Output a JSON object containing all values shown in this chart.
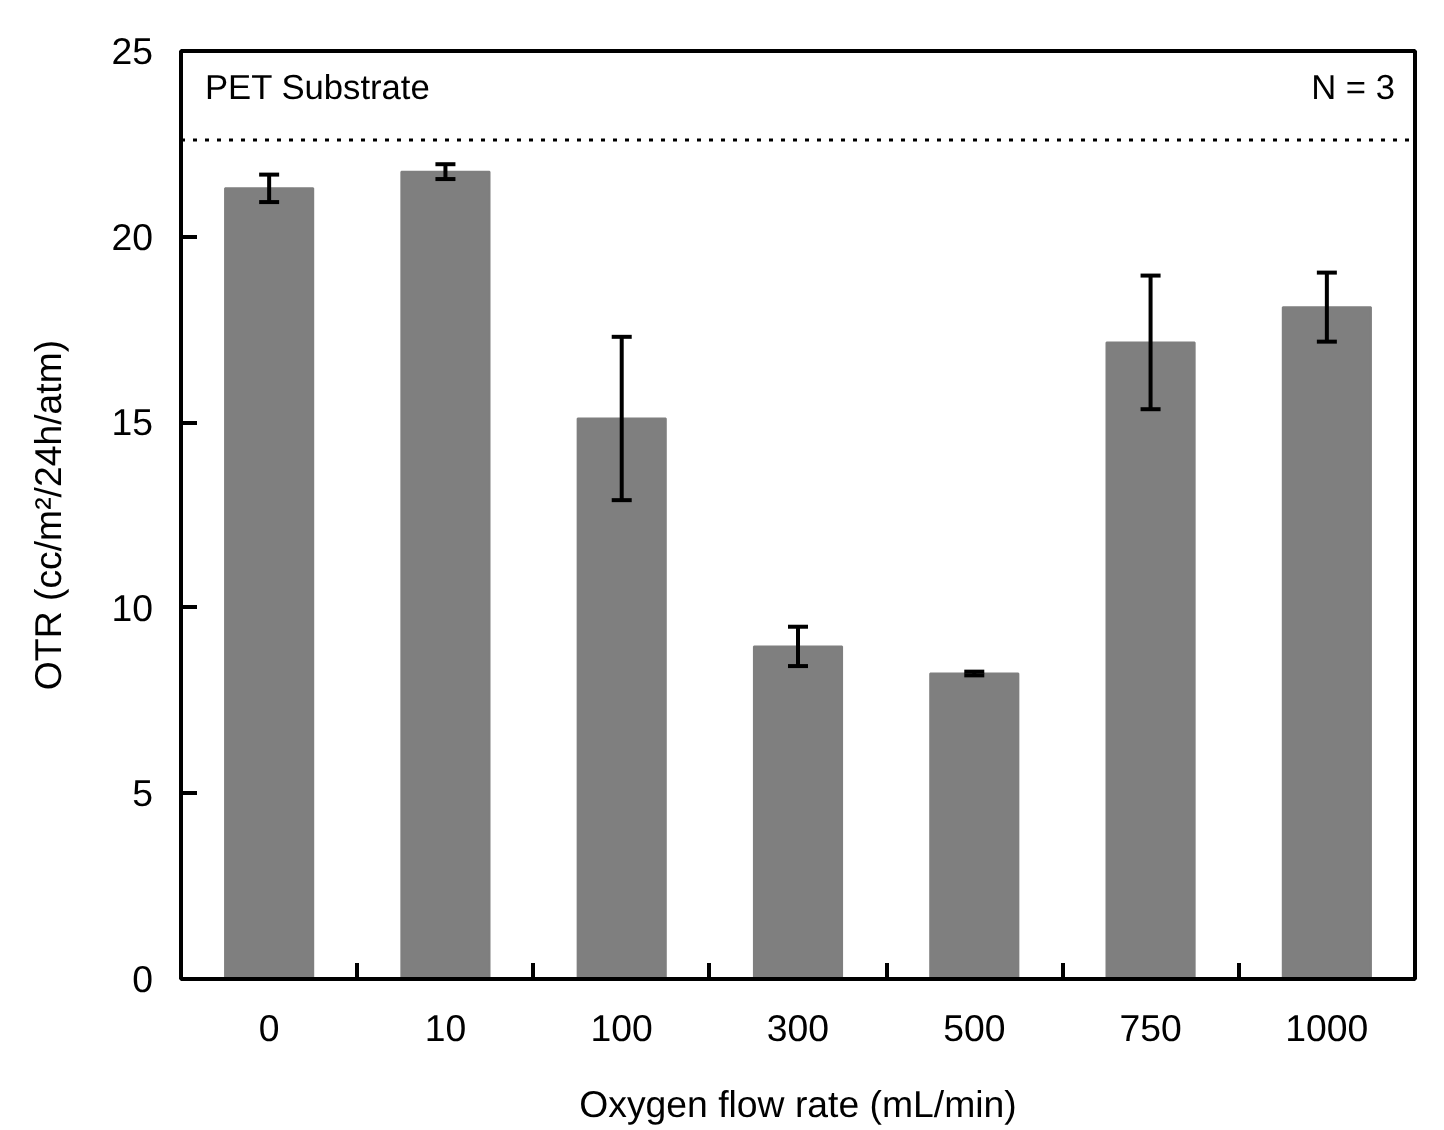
{
  "chart_data": {
    "type": "bar",
    "xlabel": "Oxygen flow rate (mL/min)",
    "ylabel": "OTR (cc/m²/24h/atm)",
    "categories": [
      "0",
      "10",
      "100",
      "300",
      "500",
      "750",
      "1000"
    ],
    "values": [
      21.3,
      21.75,
      15.1,
      8.96,
      8.23,
      17.15,
      18.1
    ],
    "errors": [
      0.37,
      0.2,
      2.2,
      0.53,
      0.05,
      1.8,
      0.93
    ],
    "color": "#7f7f7f",
    "ylim": [
      0,
      25
    ],
    "yticks": [
      0,
      5,
      10,
      15,
      20,
      25
    ],
    "grid": false,
    "ref_lines": [
      {
        "axis": "y",
        "value": 22.6,
        "label": null,
        "color": "#000000",
        "line_style": "dotted"
      }
    ],
    "annotations": [
      "PET Substrate",
      "N = 3"
    ]
  }
}
